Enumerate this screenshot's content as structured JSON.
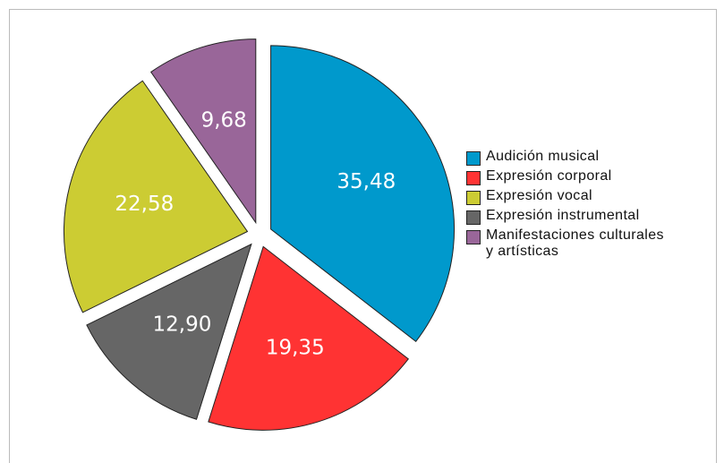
{
  "chart_data": {
    "type": "pie",
    "categories": [
      "Audición musical",
      "Expresión corporal",
      "Expresión instrumental",
      "Expresión vocal",
      "Manifestaciones culturales y artísticas"
    ],
    "values": [
      35.48,
      19.35,
      12.9,
      22.58,
      9.68
    ],
    "value_labels": [
      "35,48",
      "19,35",
      "12,90",
      "22,58",
      "9,68"
    ],
    "colors": [
      "#0099cc",
      "#ff3333",
      "#666666",
      "#cccc33",
      "#996699"
    ],
    "legend": "right"
  }
}
